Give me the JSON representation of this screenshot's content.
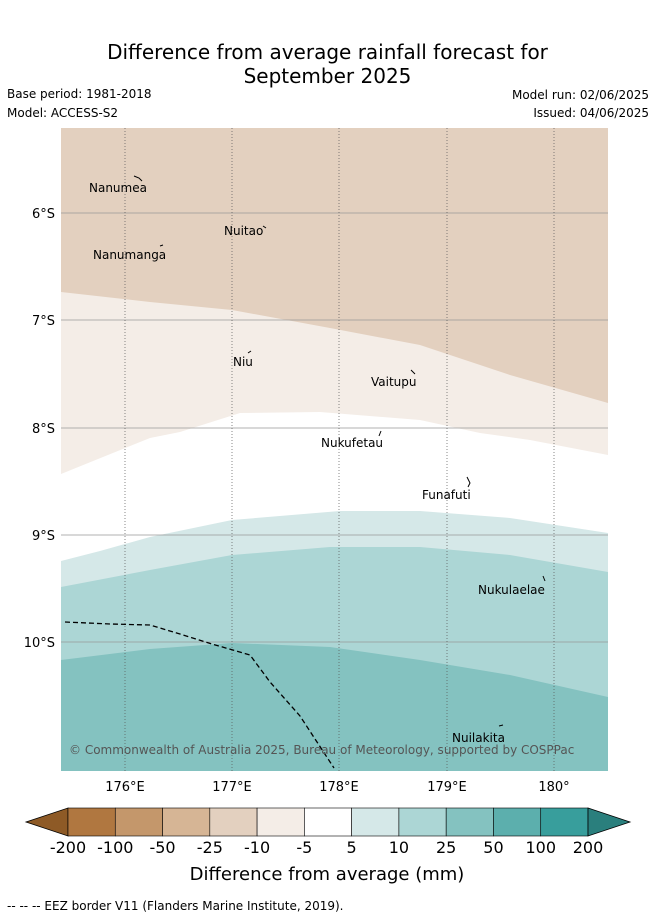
{
  "header": {
    "title_line1": "Difference from average rainfall forecast for",
    "title_line2": "September 2025",
    "base_period": "Base period: 1981-2018",
    "model": "Model: ACCESS-S2",
    "model_run": "Model run: 02/06/2025",
    "issued": "Issued: 04/06/2025"
  },
  "map": {
    "lat_labels": [
      "6°S",
      "7°S",
      "8°S",
      "9°S",
      "10°S"
    ],
    "lon_labels": [
      "176°E",
      "177°E",
      "178°E",
      "179°E",
      "180°"
    ],
    "places": [
      "Nanumea",
      "Nuitao",
      "Nanumanga",
      "Niu",
      "Vaitupu",
      "Nukufetau",
      "Funafuti",
      "Nukulaelae",
      "Nuilakita"
    ],
    "credit": "© Commonwealth of Australia 2025, Bureau of Meteorology, supported by COSPPac"
  },
  "legend": {
    "ticks": [
      "-200",
      "-100",
      "-50",
      "-25",
      "-10",
      "-5",
      "5",
      "10",
      "25",
      "50",
      "100",
      "200"
    ],
    "label": "Difference from average (mm)",
    "colors": [
      "#8e5a26",
      "#b07740",
      "#c4976b",
      "#d6b595",
      "#e3d0bf",
      "#f4ede7",
      "#ffffff",
      "#d5e8e8",
      "#acd6d5",
      "#84c2c0",
      "#5cafad",
      "#389e9c",
      "#2a7f7d"
    ]
  },
  "footnote": "-- -- -- EEZ border V11 (Flanders Marine Institute, 2019)."
}
